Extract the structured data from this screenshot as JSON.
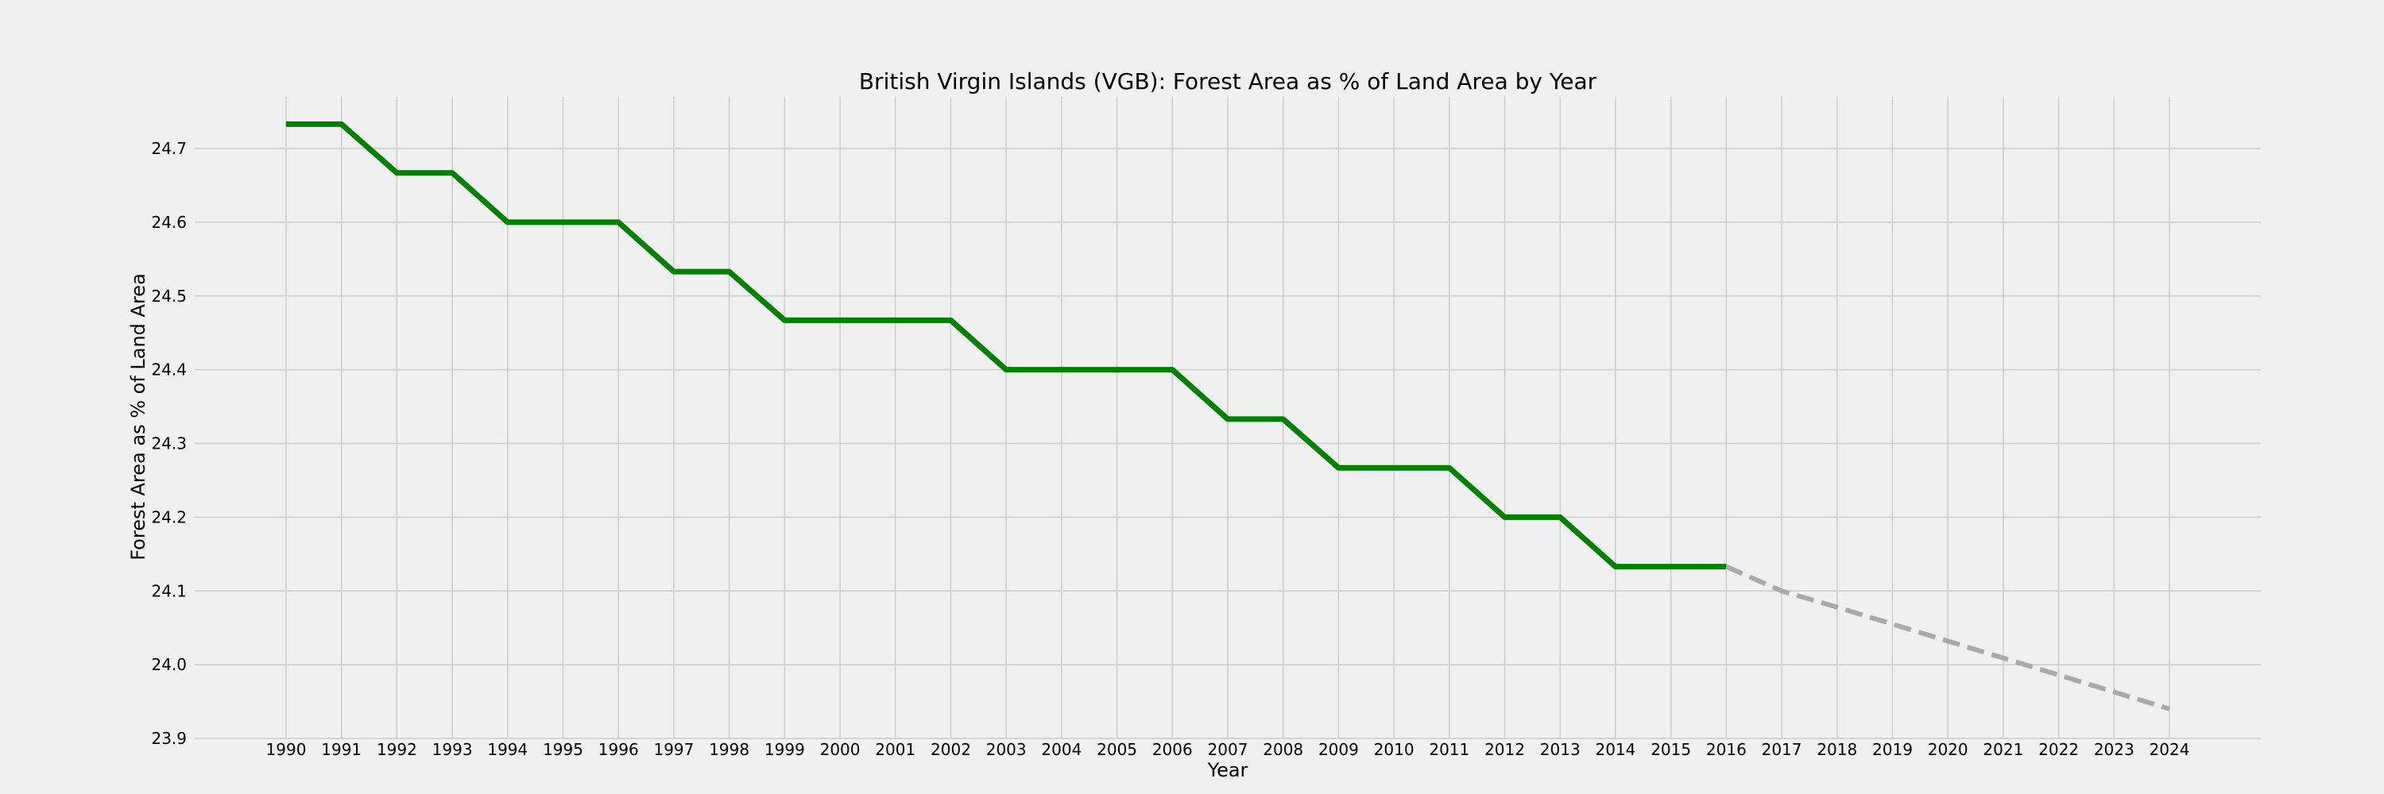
{
  "chart_data": {
    "type": "line",
    "title": "British Virgin Islands (VGB): Forest Area as % of Land Area by Year",
    "xlabel": "Year",
    "ylabel": "Forest Area as % of Land Area",
    "ylim": [
      23.9,
      24.77
    ],
    "yticks": [
      23.9,
      24.0,
      24.1,
      24.2,
      24.3,
      24.4,
      24.5,
      24.6,
      24.7
    ],
    "xticks": [
      1990,
      1991,
      1992,
      1993,
      1994,
      1995,
      1996,
      1997,
      1998,
      1999,
      2000,
      2001,
      2002,
      2003,
      2004,
      2005,
      2006,
      2007,
      2008,
      2009,
      2010,
      2011,
      2012,
      2013,
      2014,
      2015,
      2016,
      2017,
      2018,
      2019,
      2020,
      2021,
      2022,
      2023,
      2024
    ],
    "grid": true,
    "series": [
      {
        "style": "solid",
        "color": "#008000",
        "x": [
          1990,
          1991,
          1992,
          1993,
          1994,
          1995,
          1996,
          1997,
          1998,
          1999,
          2000,
          2001,
          2002,
          2003,
          2004,
          2005,
          2006,
          2007,
          2008,
          2009,
          2010,
          2011,
          2012,
          2013,
          2014,
          2015,
          2016
        ],
        "values": [
          24.733,
          24.733,
          24.667,
          24.667,
          24.6,
          24.6,
          24.6,
          24.533,
          24.533,
          24.467,
          24.467,
          24.467,
          24.467,
          24.4,
          24.4,
          24.4,
          24.4,
          24.333,
          24.333,
          24.267,
          24.267,
          24.267,
          24.2,
          24.2,
          24.133,
          24.133,
          24.133
        ]
      },
      {
        "style": "dashed",
        "color": "#a9a9a9",
        "x": [
          2016,
          2017,
          2018,
          2019,
          2020,
          2021,
          2022,
          2023,
          2024
        ],
        "values": [
          24.133,
          24.1,
          24.078,
          24.055,
          24.032,
          24.009,
          23.986,
          23.963,
          23.94
        ]
      }
    ]
  }
}
